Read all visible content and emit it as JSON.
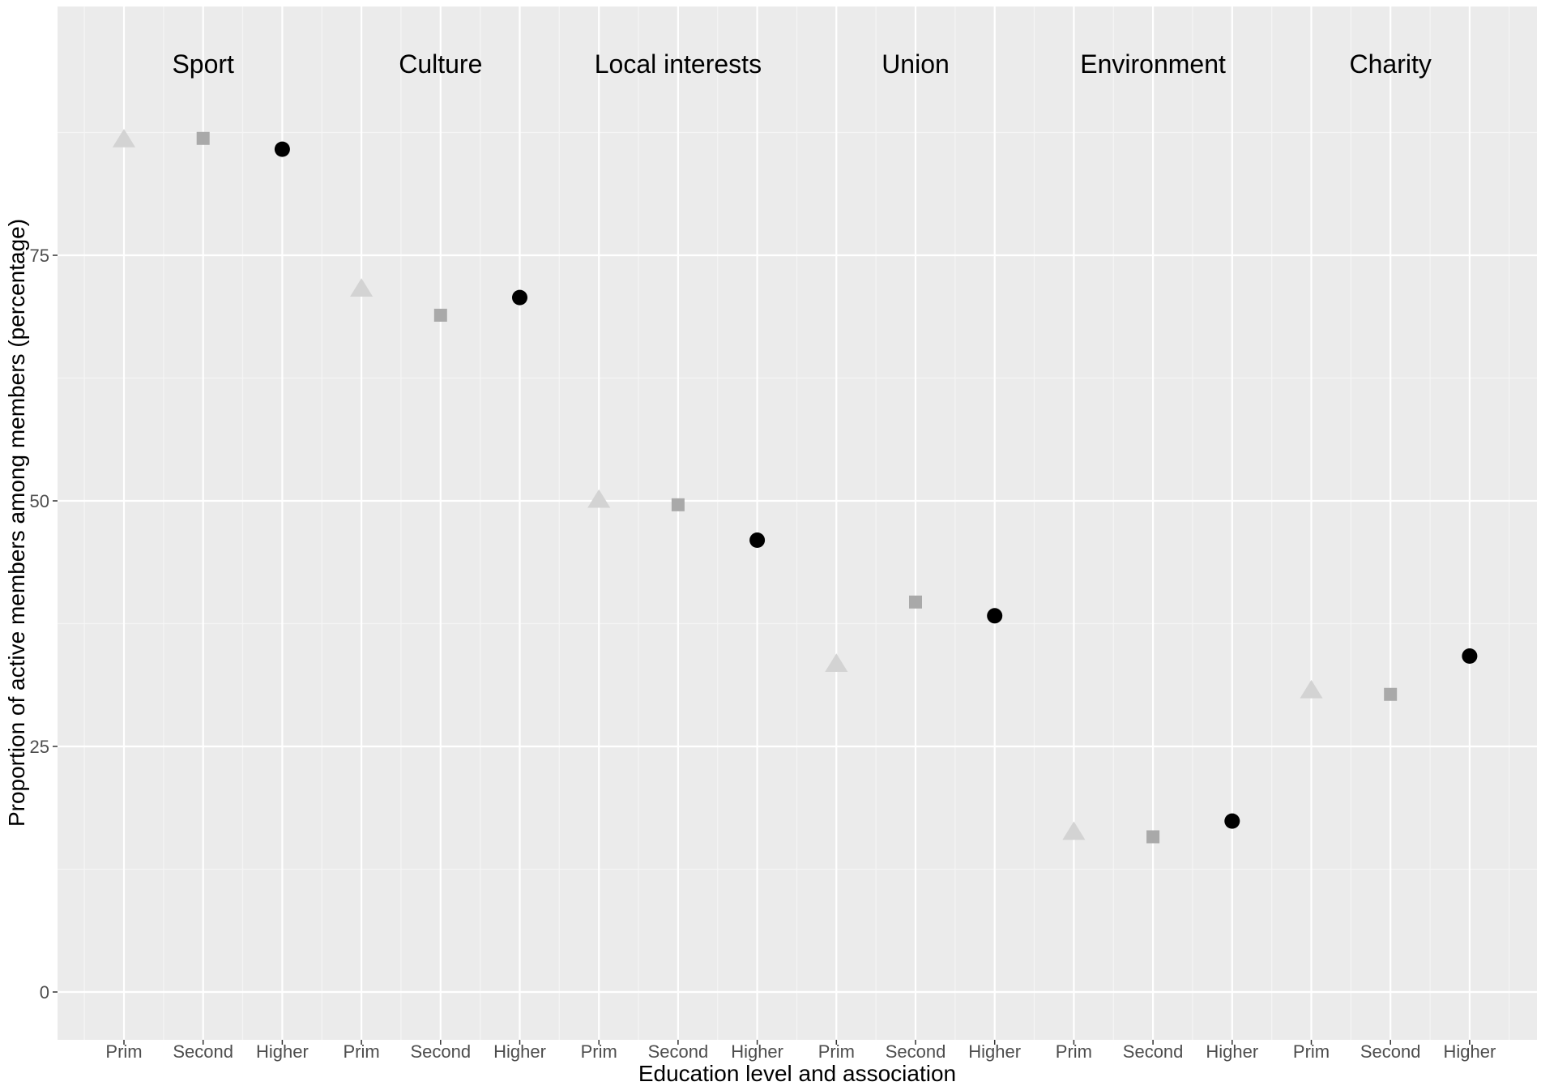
{
  "chart_data": {
    "type": "scatter",
    "title": "",
    "xlabel": "Education level and association",
    "ylabel": "Proportion of active members among members (percentage)",
    "ylim": [
      -4.7,
      100
    ],
    "yticks": [
      0,
      25,
      50,
      75
    ],
    "grid": true,
    "background": "#ebebeb",
    "education_levels": [
      "Prim",
      "Second",
      "Higher"
    ],
    "level_styles": {
      "Prim": {
        "shape": "triangle",
        "color": "#d3d3d3"
      },
      "Second": {
        "shape": "square",
        "color": "#a9a9a9"
      },
      "Higher": {
        "shape": "circle",
        "color": "#000000"
      }
    },
    "groups": [
      {
        "name": "Sport",
        "values": [
          86.8,
          86.9,
          85.8
        ]
      },
      {
        "name": "Culture",
        "values": [
          71.6,
          68.9,
          70.7
        ]
      },
      {
        "name": "Local interests",
        "values": [
          50.1,
          49.6,
          46.0
        ]
      },
      {
        "name": "Union",
        "values": [
          33.4,
          39.7,
          38.3
        ]
      },
      {
        "name": "Environment",
        "values": [
          16.3,
          15.8,
          17.4
        ]
      },
      {
        "name": "Charity",
        "values": [
          30.7,
          30.3,
          34.2
        ]
      }
    ]
  }
}
